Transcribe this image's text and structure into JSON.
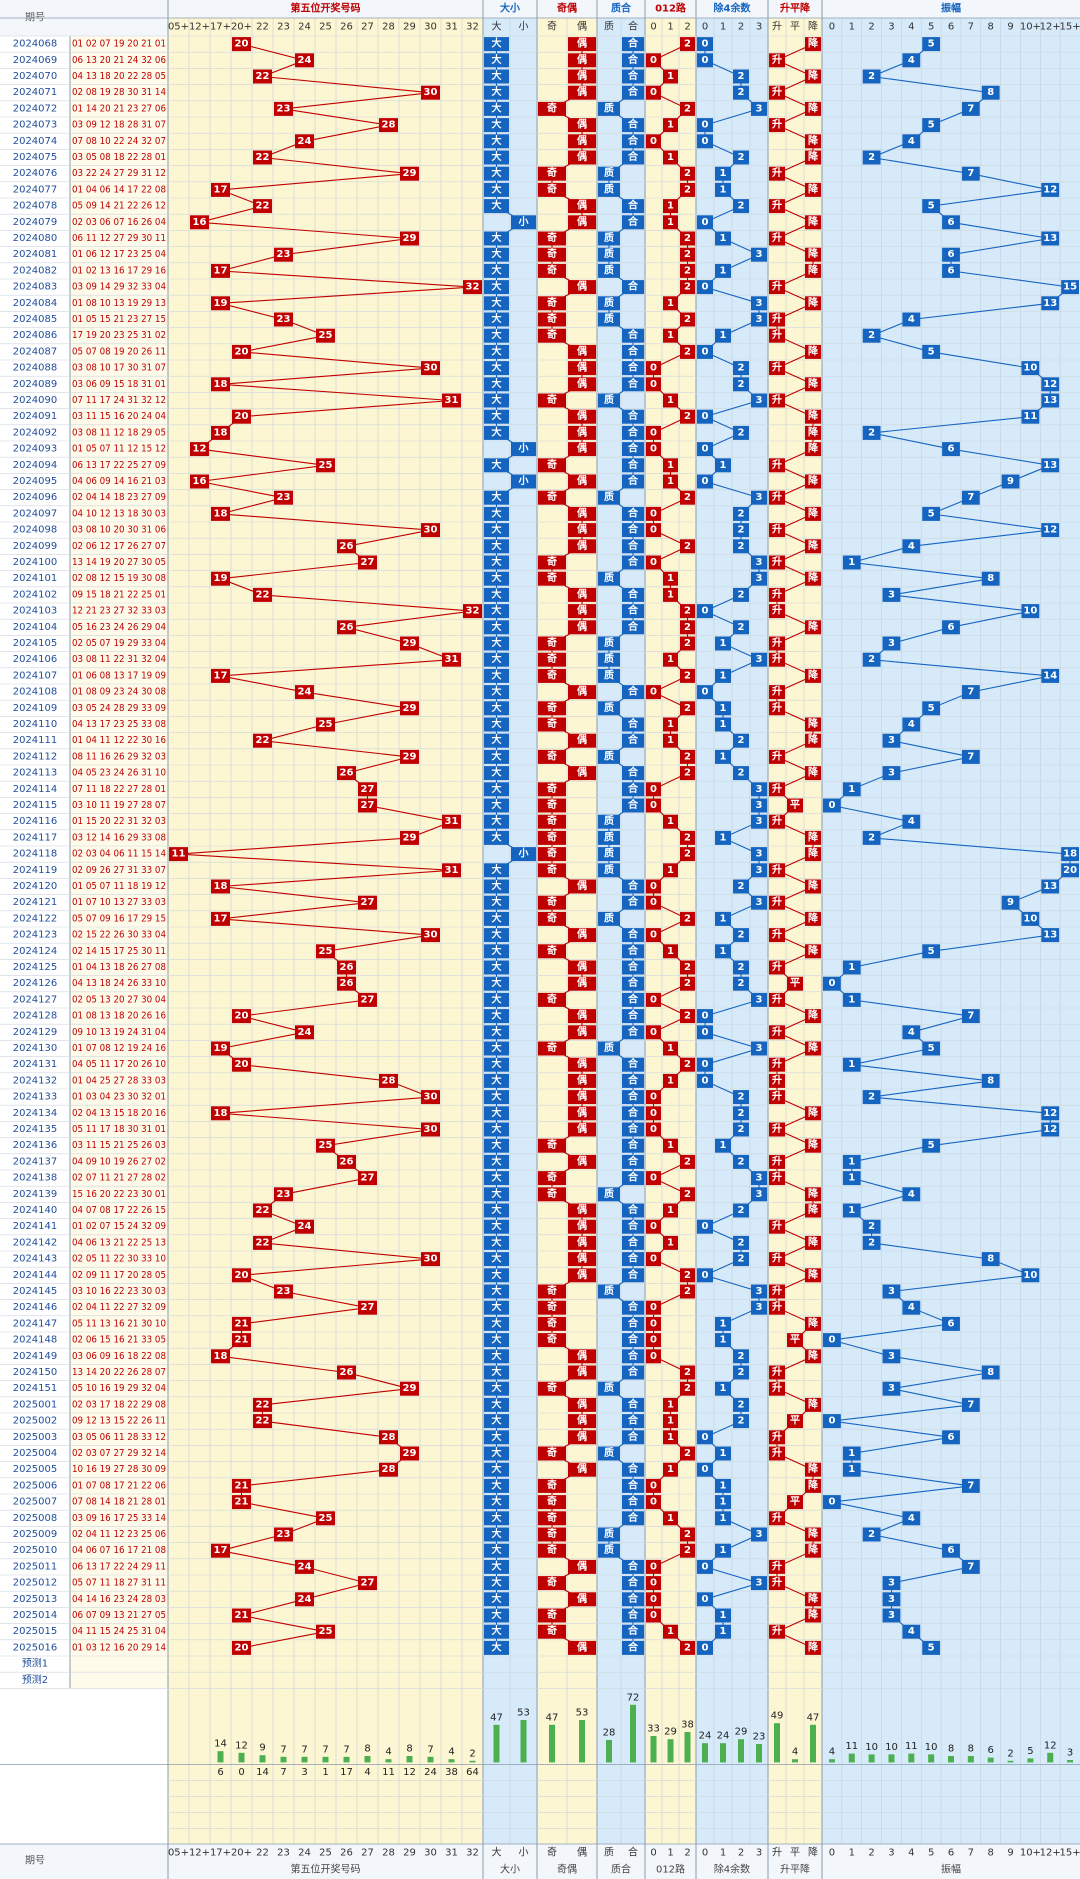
{
  "headers": {
    "issue": "期号",
    "fifth": "第五位开奖号码",
    "size": "大小",
    "parity": "奇偶",
    "prime": "质合",
    "r3": "012路",
    "r4": "除4余数",
    "trend": "升平降",
    "amp": "振幅"
  },
  "columns": {
    "fifth": [
      {
        "value": 5,
        "label": "05+"
      },
      {
        "value": 12,
        "label": "12+"
      },
      {
        "value": 17,
        "label": "17+"
      },
      {
        "value": 20,
        "label": "20+"
      },
      22,
      23,
      24,
      25,
      26,
      27,
      28,
      29,
      30,
      31,
      32
    ],
    "size": [
      "大",
      "小"
    ],
    "parity": [
      "奇",
      "偶"
    ],
    "prime": [
      "质",
      "合"
    ],
    "r3": [
      0,
      1,
      2
    ],
    "r4": [
      0,
      1,
      2,
      3
    ],
    "trend": [
      "升",
      "平",
      "降"
    ],
    "amp": [
      0,
      1,
      2,
      3,
      4,
      5,
      6,
      7,
      8,
      9,
      {
        "value": 10,
        "label": "10+"
      },
      {
        "value": 12,
        "label": "12+"
      },
      {
        "value": 15,
        "label": "15+"
      }
    ]
  },
  "rows": [
    [
      "2024068",
      "01 02 07 19 20 21 01",
      20,
      "大",
      "偶",
      "合",
      2,
      0,
      "降",
      5
    ],
    [
      "2024069",
      "06 13 20 21 24 32 06",
      24,
      "大",
      "偶",
      "合",
      0,
      0,
      "升",
      4
    ],
    [
      "2024070",
      "04 13 18 20 22 28 05",
      22,
      "大",
      "偶",
      "合",
      1,
      2,
      "降",
      2
    ],
    [
      "2024071",
      "02 08 19 28 30 31 14",
      30,
      "大",
      "偶",
      "合",
      0,
      2,
      "升",
      8
    ],
    [
      "2024072",
      "01 14 20 21 23 27 06",
      23,
      "大",
      "奇",
      "质",
      2,
      3,
      "降",
      7
    ],
    [
      "2024073",
      "03 09 12 18 28 31 07",
      28,
      "大",
      "偶",
      "合",
      1,
      0,
      "升",
      5
    ],
    [
      "2024074",
      "07 08 10 22 24 32 07",
      24,
      "大",
      "偶",
      "合",
      0,
      0,
      "降",
      4
    ],
    [
      "2024075",
      "03 05 08 18 22 28 01",
      22,
      "大",
      "偶",
      "合",
      1,
      2,
      "降",
      2
    ],
    [
      "2024076",
      "03 22 24 27 29 31 12",
      29,
      "大",
      "奇",
      "质",
      2,
      1,
      "升",
      7
    ],
    [
      "2024077",
      "01 04 06 14 17 22 08",
      17,
      "大",
      "奇",
      "质",
      2,
      1,
      "降",
      12
    ],
    [
      "2024078",
      "05 09 14 21 22 26 12",
      22,
      "大",
      "偶",
      "合",
      1,
      2,
      "升",
      5
    ],
    [
      "2024079",
      "02 03 06 07 16 26 04",
      16,
      "小",
      "偶",
      "合",
      1,
      0,
      "降",
      6
    ],
    [
      "2024080",
      "06 11 12 27 29 30 11",
      29,
      "大",
      "奇",
      "质",
      2,
      1,
      "升",
      13
    ],
    [
      "2024081",
      "01 06 12 17 23 25 04",
      23,
      "大",
      "奇",
      "质",
      2,
      3,
      "降",
      6
    ],
    [
      "2024082",
      "01 02 13 16 17 29 16",
      17,
      "大",
      "奇",
      "质",
      2,
      1,
      "降",
      6
    ],
    [
      "2024083",
      "03 09 14 29 32 33 04",
      32,
      "大",
      "偶",
      "合",
      2,
      0,
      "升",
      15
    ],
    [
      "2024084",
      "01 08 10 13 19 29 13",
      19,
      "大",
      "奇",
      "质",
      1,
      3,
      "降",
      13
    ],
    [
      "2024085",
      "01 05 15 21 23 27 15",
      23,
      "大",
      "奇",
      "质",
      2,
      3,
      "升",
      4
    ],
    [
      "2024086",
      "17 19 20 23 25 31 02",
      25,
      "大",
      "奇",
      "合",
      1,
      1,
      "升",
      2
    ],
    [
      "2024087",
      "05 07 08 19 20 26 11",
      20,
      "大",
      "偶",
      "合",
      2,
      0,
      "降",
      5
    ],
    [
      "2024088",
      "03 08 10 17 30 31 07",
      30,
      "大",
      "偶",
      "合",
      0,
      2,
      "升",
      10
    ],
    [
      "2024089",
      "03 06 09 15 18 31 01",
      18,
      "大",
      "偶",
      "合",
      0,
      2,
      "降",
      12
    ],
    [
      "2024090",
      "07 11 17 24 31 32 12",
      31,
      "大",
      "奇",
      "质",
      1,
      3,
      "升",
      13
    ],
    [
      "2024091",
      "03 11 15 16 20 24 04",
      20,
      "大",
      "偶",
      "合",
      2,
      0,
      "降",
      11
    ],
    [
      "2024092",
      "03 08 11 12 18 29 05",
      18,
      "大",
      "偶",
      "合",
      0,
      2,
      "降",
      2
    ],
    [
      "2024093",
      "01 05 07 11 12 15 12",
      12,
      "小",
      "偶",
      "合",
      0,
      0,
      "降",
      6
    ],
    [
      "2024094",
      "06 13 17 22 25 27 09",
      25,
      "大",
      "奇",
      "合",
      1,
      1,
      "升",
      13
    ],
    [
      "2024095",
      "04 06 09 14 16 21 03",
      16,
      "小",
      "偶",
      "合",
      1,
      0,
      "降",
      9
    ],
    [
      "2024096",
      "02 04 14 18 23 27 09",
      23,
      "大",
      "奇",
      "质",
      2,
      3,
      "升",
      7
    ],
    [
      "2024097",
      "04 10 12 13 18 30 03",
      18,
      "大",
      "偶",
      "合",
      0,
      2,
      "降",
      5
    ],
    [
      "2024098",
      "03 08 10 20 30 31 06",
      30,
      "大",
      "偶",
      "合",
      0,
      2,
      "升",
      12
    ],
    [
      "2024099",
      "02 06 12 17 26 27 07",
      26,
      "大",
      "偶",
      "合",
      2,
      2,
      "降",
      4
    ],
    [
      "2024100",
      "13 14 19 20 27 30 05",
      27,
      "大",
      "奇",
      "合",
      0,
      3,
      "升",
      1
    ],
    [
      "2024101",
      "02 08 12 15 19 30 08",
      19,
      "大",
      "奇",
      "质",
      1,
      3,
      "降",
      8
    ],
    [
      "2024102",
      "09 15 18 21 22 25 01",
      22,
      "大",
      "偶",
      "合",
      1,
      2,
      "升",
      3
    ],
    [
      "2024103",
      "12 21 23 27 32 33 03",
      32,
      "大",
      "偶",
      "合",
      2,
      0,
      "升",
      10
    ],
    [
      "2024104",
      "05 16 23 24 26 29 04",
      26,
      "大",
      "偶",
      "合",
      2,
      2,
      "降",
      6
    ],
    [
      "2024105",
      "02 05 07 19 29 33 04",
      29,
      "大",
      "奇",
      "质",
      2,
      1,
      "升",
      3
    ],
    [
      "2024106",
      "03 08 11 22 31 32 04",
      31,
      "大",
      "奇",
      "质",
      1,
      3,
      "升",
      2
    ],
    [
      "2024107",
      "01 06 08 13 17 19 09",
      17,
      "大",
      "奇",
      "质",
      2,
      1,
      "降",
      14
    ],
    [
      "2024108",
      "01 08 09 23 24 30 08",
      24,
      "大",
      "偶",
      "合",
      0,
      0,
      "升",
      7
    ],
    [
      "2024109",
      "03 05 24 28 29 33 09",
      29,
      "大",
      "奇",
      "质",
      2,
      1,
      "升",
      5
    ],
    [
      "2024110",
      "04 13 17 23 25 33 08",
      25,
      "大",
      "奇",
      "合",
      1,
      1,
      "降",
      4
    ],
    [
      "2024111",
      "01 04 11 12 22 30 16",
      22,
      "大",
      "偶",
      "合",
      1,
      2,
      "降",
      3
    ],
    [
      "2024112",
      "08 11 16 26 29 32 03",
      29,
      "大",
      "奇",
      "质",
      2,
      1,
      "升",
      7
    ],
    [
      "2024113",
      "04 05 23 24 26 31 10",
      26,
      "大",
      "偶",
      "合",
      2,
      2,
      "降",
      3
    ],
    [
      "2024114",
      "07 11 18 22 27 28 01",
      27,
      "大",
      "奇",
      "合",
      0,
      3,
      "升",
      1
    ],
    [
      "2024115",
      "03 10 11 19 27 28 07",
      27,
      "大",
      "奇",
      "合",
      0,
      3,
      "平",
      0
    ],
    [
      "2024116",
      "01 15 20 22 31 32 03",
      31,
      "大",
      "奇",
      "质",
      1,
      3,
      "升",
      4
    ],
    [
      "2024117",
      "03 12 14 16 29 33 08",
      29,
      "大",
      "奇",
      "质",
      2,
      1,
      "降",
      2
    ],
    [
      "2024118",
      "02 03 04 06 11 15 14",
      11,
      "小",
      "奇",
      "质",
      2,
      3,
      "降",
      18
    ],
    [
      "2024119",
      "02 09 26 27 31 33 07",
      31,
      "大",
      "奇",
      "质",
      1,
      3,
      "升",
      20
    ],
    [
      "2024120",
      "01 05 07 11 18 19 12",
      18,
      "大",
      "偶",
      "合",
      0,
      2,
      "降",
      13
    ],
    [
      "2024121",
      "01 07 10 13 27 33 03",
      27,
      "大",
      "奇",
      "合",
      0,
      3,
      "升",
      9
    ],
    [
      "2024122",
      "05 07 09 16 17 29 15",
      17,
      "大",
      "奇",
      "质",
      2,
      1,
      "降",
      10
    ],
    [
      "2024123",
      "02 15 22 26 30 33 04",
      30,
      "大",
      "偶",
      "合",
      0,
      2,
      "升",
      13
    ],
    [
      "2024124",
      "02 14 15 17 25 30 11",
      25,
      "大",
      "奇",
      "合",
      1,
      1,
      "降",
      5
    ],
    [
      "2024125",
      "01 04 13 18 26 27 08",
      26,
      "大",
      "偶",
      "合",
      2,
      2,
      "升",
      1
    ],
    [
      "2024126",
      "04 13 18 24 26 33 10",
      26,
      "大",
      "偶",
      "合",
      2,
      2,
      "平",
      0
    ],
    [
      "2024127",
      "02 05 13 20 27 30 04",
      27,
      "大",
      "奇",
      "合",
      0,
      3,
      "升",
      1
    ],
    [
      "2024128",
      "01 08 13 18 20 26 16",
      20,
      "大",
      "偶",
      "合",
      2,
      0,
      "降",
      7
    ],
    [
      "2024129",
      "09 10 13 19 24 31 04",
      24,
      "大",
      "偶",
      "合",
      0,
      0,
      "升",
      4
    ],
    [
      "2024130",
      "01 07 08 12 19 24 16",
      19,
      "大",
      "奇",
      "质",
      1,
      3,
      "降",
      5
    ],
    [
      "2024131",
      "04 05 11 17 20 26 10",
      20,
      "大",
      "偶",
      "合",
      2,
      0,
      "升",
      1
    ],
    [
      "2024132",
      "01 04 25 27 28 33 03",
      28,
      "大",
      "偶",
      "合",
      1,
      0,
      "升",
      8
    ],
    [
      "2024133",
      "01 03 04 23 30 32 01",
      30,
      "大",
      "偶",
      "合",
      0,
      2,
      "升",
      2
    ],
    [
      "2024134",
      "02 04 13 15 18 20 16",
      18,
      "大",
      "偶",
      "合",
      0,
      2,
      "降",
      12
    ],
    [
      "2024135",
      "05 11 17 18 30 31 01",
      30,
      "大",
      "偶",
      "合",
      0,
      2,
      "升",
      12
    ],
    [
      "2024136",
      "03 11 15 21 25 26 03",
      25,
      "大",
      "奇",
      "合",
      1,
      1,
      "降",
      5
    ],
    [
      "2024137",
      "04 09 10 19 26 27 02",
      26,
      "大",
      "偶",
      "合",
      2,
      2,
      "升",
      1
    ],
    [
      "2024138",
      "02 07 11 21 27 28 02",
      27,
      "大",
      "奇",
      "合",
      0,
      3,
      "升",
      1
    ],
    [
      "2024139",
      "15 16 20 22 23 30 01",
      23,
      "大",
      "奇",
      "质",
      2,
      3,
      "降",
      4
    ],
    [
      "2024140",
      "04 07 08 17 22 26 15",
      22,
      "大",
      "偶",
      "合",
      1,
      2,
      "降",
      1
    ],
    [
      "2024141",
      "01 02 07 15 24 32 09",
      24,
      "大",
      "偶",
      "合",
      0,
      0,
      "升",
      2
    ],
    [
      "2024142",
      "04 06 13 21 22 25 13",
      22,
      "大",
      "偶",
      "合",
      1,
      2,
      "降",
      2
    ],
    [
      "2024143",
      "02 05 11 22 30 33 10",
      30,
      "大",
      "偶",
      "合",
      0,
      2,
      "升",
      8
    ],
    [
      "2024144",
      "02 09 11 17 20 28 05",
      20,
      "大",
      "偶",
      "合",
      2,
      0,
      "降",
      10
    ],
    [
      "2024145",
      "03 10 16 22 23 30 03",
      23,
      "大",
      "奇",
      "质",
      2,
      3,
      "升",
      3
    ],
    [
      "2024146",
      "02 04 11 22 27 32 09",
      27,
      "大",
      "奇",
      "合",
      0,
      3,
      "升",
      4
    ],
    [
      "2024147",
      "05 11 13 16 21 30 10",
      21,
      "大",
      "奇",
      "合",
      0,
      1,
      "降",
      6
    ],
    [
      "2024148",
      "02 06 15 16 21 33 05",
      21,
      "大",
      "奇",
      "合",
      0,
      1,
      "平",
      0
    ],
    [
      "2024149",
      "03 06 09 16 18 22 08",
      18,
      "大",
      "偶",
      "合",
      0,
      2,
      "降",
      3
    ],
    [
      "2024150",
      "13 14 20 22 26 28 07",
      26,
      "大",
      "偶",
      "合",
      2,
      2,
      "升",
      8
    ],
    [
      "2024151",
      "05 10 16 19 29 32 04",
      29,
      "大",
      "奇",
      "质",
      2,
      1,
      "升",
      3
    ],
    [
      "2025001",
      "02 03 17 18 22 29 08",
      22,
      "大",
      "偶",
      "合",
      1,
      2,
      "降",
      7
    ],
    [
      "2025002",
      "09 12 13 15 22 26 11",
      22,
      "大",
      "偶",
      "合",
      1,
      2,
      "平",
      0
    ],
    [
      "2025003",
      "03 05 06 11 28 33 12",
      28,
      "大",
      "偶",
      "合",
      1,
      0,
      "升",
      6
    ],
    [
      "2025004",
      "02 03 07 27 29 32 14",
      29,
      "大",
      "奇",
      "质",
      2,
      1,
      "升",
      1
    ],
    [
      "2025005",
      "10 16 19 27 28 30 09",
      28,
      "大",
      "偶",
      "合",
      1,
      0,
      "降",
      1
    ],
    [
      "2025006",
      "01 07 08 17 21 22 06",
      21,
      "大",
      "奇",
      "合",
      0,
      1,
      "降",
      7
    ],
    [
      "2025007",
      "07 08 14 18 21 28 01",
      21,
      "大",
      "奇",
      "合",
      0,
      1,
      "平",
      0
    ],
    [
      "2025008",
      "03 09 16 17 25 33 14",
      25,
      "大",
      "奇",
      "合",
      1,
      1,
      "升",
      4
    ],
    [
      "2025009",
      "02 04 11 12 23 25 06",
      23,
      "大",
      "奇",
      "质",
      2,
      3,
      "降",
      2
    ],
    [
      "2025010",
      "04 06 07 16 17 21 08",
      17,
      "大",
      "奇",
      "质",
      2,
      1,
      "降",
      6
    ],
    [
      "2025011",
      "06 13 17 22 24 29 11",
      24,
      "大",
      "偶",
      "合",
      0,
      0,
      "升",
      7
    ],
    [
      "2025012",
      "05 07 11 18 27 31 11",
      27,
      "大",
      "奇",
      "合",
      0,
      3,
      "升",
      3
    ],
    [
      "2025013",
      "04 14 16 23 24 28 03",
      24,
      "大",
      "偶",
      "合",
      0,
      0,
      "降",
      3
    ],
    [
      "2025014",
      "06 07 09 13 21 27 05",
      21,
      "大",
      "奇",
      "合",
      0,
      1,
      "降",
      3
    ],
    [
      "2025015",
      "04 11 15 24 25 31 04",
      25,
      "大",
      "奇",
      "合",
      1,
      1,
      "升",
      4
    ],
    [
      "2025016",
      "01 03 12 16 20 29 14",
      20,
      "大",
      "偶",
      "合",
      2,
      0,
      "降",
      5
    ]
  ],
  "predictions": [
    "预测1",
    "预测2"
  ],
  "bars": {
    "fifth": [
      null,
      null,
      14,
      12,
      9,
      7,
      7,
      7,
      7,
      8,
      4,
      8,
      7,
      4,
      2
    ],
    "size": [
      47,
      53
    ],
    "parity": [
      47,
      53
    ],
    "prime": [
      28,
      72
    ],
    "r3": [
      33,
      29,
      38
    ],
    "r4": [
      24,
      24,
      29,
      23
    ],
    "trend": [
      49,
      4,
      47
    ],
    "amp": [
      4,
      11,
      10,
      10,
      11,
      10,
      8,
      8,
      6,
      2,
      5,
      12,
      3
    ]
  },
  "stats_row1": {
    "fifth": [
      null,
      null,
      6,
      0,
      14,
      7,
      3,
      1,
      17,
      4,
      11,
      12,
      24,
      38,
      64
    ]
  }
}
